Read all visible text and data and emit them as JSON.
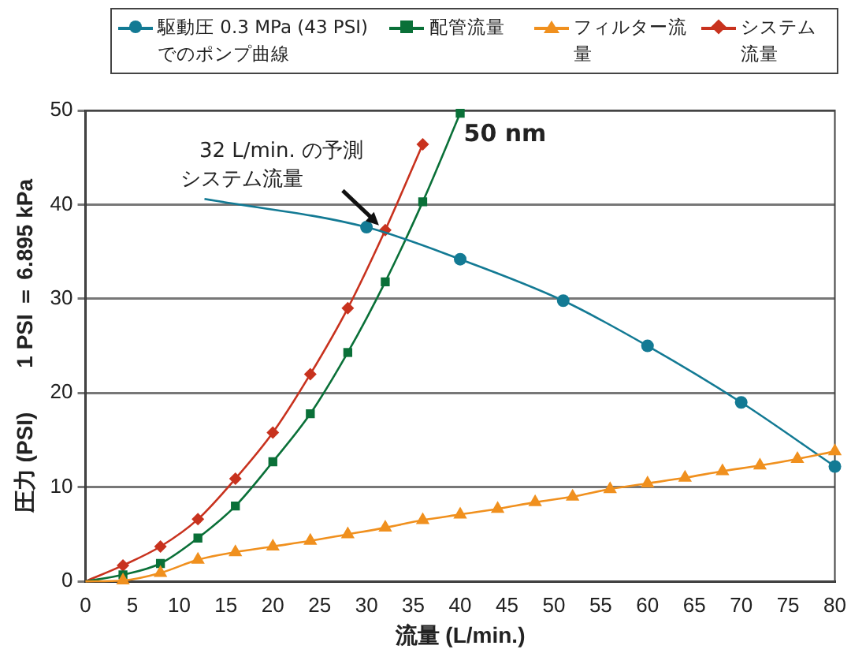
{
  "chart_data": {
    "type": "line",
    "xlabel": "流量 (L/min.)",
    "ylabel": "圧力 (PSI)　　1 PSI ＝ 6.895 kPa",
    "xlim": [
      0,
      80
    ],
    "xticks": [
      0,
      5,
      10,
      15,
      20,
      25,
      30,
      35,
      40,
      45,
      50,
      55,
      60,
      65,
      70,
      75,
      80
    ],
    "ylim": [
      0,
      50
    ],
    "yticks": [
      0,
      10,
      20,
      30,
      40,
      50
    ],
    "grid": "y",
    "legend": "top",
    "line_style": "solid",
    "series": [
      {
        "name": "駆動圧 0.3 MPa (43 PSI) でのポンプ曲線",
        "color": "#137a94",
        "marker": "circle",
        "x": [
          12.7,
          30,
          40,
          51,
          60,
          70,
          80
        ],
        "values": [
          40.6,
          37.6,
          34.2,
          29.8,
          25.0,
          19.0,
          12.2
        ]
      },
      {
        "name": "配管流量",
        "color": "#0a7038",
        "marker": "square",
        "x": [
          0,
          4,
          8,
          12,
          16,
          20,
          24,
          28,
          32,
          36,
          40
        ],
        "values": [
          0,
          0.7,
          1.9,
          4.6,
          8.0,
          12.7,
          17.8,
          24.3,
          31.8,
          40.3,
          49.7
        ]
      },
      {
        "name": "フィルター流量",
        "color": "#f0901e",
        "marker": "triangle",
        "x": [
          0,
          4,
          8,
          12,
          16,
          20,
          24,
          28,
          32,
          36,
          40,
          44,
          48,
          52,
          56,
          60,
          64,
          68,
          72,
          76,
          80
        ],
        "values": [
          0,
          0.1,
          0.9,
          2.3,
          3.1,
          3.7,
          4.3,
          5.0,
          5.7,
          6.5,
          7.1,
          7.7,
          8.4,
          9.0,
          9.8,
          10.4,
          11.0,
          11.7,
          12.3,
          13.0,
          13.8
        ]
      },
      {
        "name": "システム流量",
        "color": "#c8321e",
        "marker": "diamond",
        "x": [
          0,
          4,
          8,
          12,
          16,
          20,
          24,
          28,
          32,
          36
        ],
        "values": [
          0,
          1.7,
          3.7,
          6.6,
          10.9,
          15.8,
          22.0,
          29.0,
          37.3,
          46.4
        ]
      }
    ],
    "annotations": [
      {
        "text": "32 L/min. の予測システム流量",
        "x": 32,
        "y": 37.3
      },
      "50 nm"
    ]
  }
}
